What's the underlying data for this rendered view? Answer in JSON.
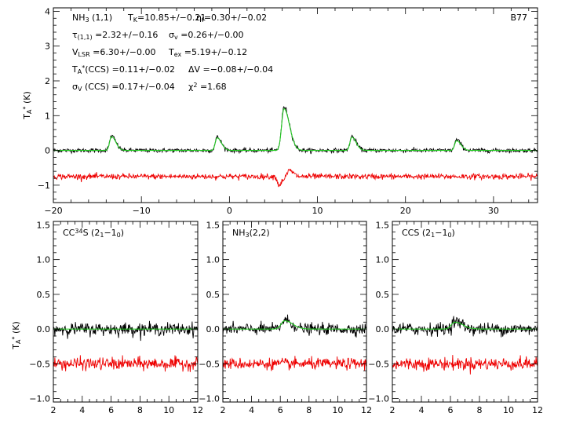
{
  "chart_data": [
    {
      "type": "line",
      "panel": "top",
      "ylabel": "T",
      "ylabel_sub": "A",
      "ylabel_sup": "*",
      "ylabel_unit": "(K)",
      "xlim": [
        -20,
        35
      ],
      "ylim": [
        -1.5,
        4.1
      ],
      "xticks": [
        -20,
        -10,
        0,
        10,
        20,
        30
      ],
      "yticks": [
        -1,
        0,
        1,
        2,
        3,
        4
      ],
      "source_label": "B77",
      "annotations": [
        [
          {
            "t": "NH"
          },
          {
            "t": "3",
            "sub": true
          },
          {
            "t": " (1,1)"
          }
        ],
        [
          {
            "t": "T"
          },
          {
            "t": "K",
            "sub": true
          },
          {
            "t": "=10.85+/−0.21"
          }
        ],
        [
          {
            "t": "η"
          },
          {
            "t": "f",
            "sub": true
          },
          {
            "t": "=0.30+/−0.02"
          }
        ],
        [
          {
            "t": "τ"
          },
          {
            "t": "(1,1)",
            "sub": true
          },
          {
            "t": " =2.32+/−0.16"
          }
        ],
        [
          {
            "t": "σ"
          },
          {
            "t": "v",
            "sub": true
          },
          {
            "t": " =0.26+/−0.00"
          }
        ],
        [
          {
            "t": "V"
          },
          {
            "t": "LSR",
            "sub": true
          },
          {
            "t": " =6.30+/−0.00"
          }
        ],
        [
          {
            "t": "T"
          },
          {
            "t": "ex",
            "sub": true
          },
          {
            "t": " =5.19+/−0.12"
          }
        ],
        [
          {
            "t": "T"
          },
          {
            "t": "A",
            "sub": true
          },
          {
            "t": "*",
            "sup": true
          },
          {
            "t": "(CCS) =0.11+/−0.02"
          }
        ],
        [
          {
            "t": "ΔV =−0.08+/−0.04"
          }
        ],
        [
          {
            "t": "σ"
          },
          {
            "t": "V",
            "sub": true
          },
          {
            "t": " (CCS) =0.17+/−0.04"
          }
        ],
        [
          {
            "t": "χ"
          },
          {
            "t": "2",
            "sup": true
          },
          {
            "t": " =1.68"
          }
        ]
      ],
      "series": [
        {
          "role": "data",
          "color": "#000000",
          "baseline": 0.0,
          "noise": 0.03,
          "components": [
            [
              -13.4,
              0.42,
              0.35
            ],
            [
              -1.4,
              0.38,
              0.35
            ],
            [
              6.2,
              1.25,
              0.45
            ],
            [
              13.9,
              0.4,
              0.35
            ],
            [
              25.8,
              0.3,
              0.35
            ]
          ]
        },
        {
          "role": "model",
          "color": "#22cc22",
          "baseline": 0.0,
          "noise": 0.0,
          "components": [
            [
              -13.4,
              0.4,
              0.35
            ],
            [
              -1.4,
              0.36,
              0.35
            ],
            [
              6.2,
              1.2,
              0.45
            ],
            [
              13.9,
              0.38,
              0.35
            ],
            [
              25.8,
              0.28,
              0.35
            ]
          ]
        },
        {
          "role": "residual",
          "color": "#ee0000",
          "baseline": -0.75,
          "noise": 0.04,
          "components": [
            [
              5.6,
              -0.25,
              0.25
            ],
            [
              6.8,
              0.18,
              0.3
            ]
          ]
        }
      ]
    },
    {
      "type": "line",
      "panel": "bottom-left",
      "label": [
        {
          "t": "CC"
        },
        {
          "t": "34",
          "sup": true
        },
        {
          "t": "S (2"
        },
        {
          "t": "1",
          "sub": true
        },
        {
          "t": "−1"
        },
        {
          "t": "0",
          "sub": true
        },
        {
          "t": ")"
        }
      ],
      "ylabel": "T",
      "ylabel_sub": "A",
      "ylabel_sup": "*",
      "ylabel_unit": "(K)",
      "xlim": [
        2,
        12
      ],
      "ylim": [
        -1.05,
        1.55
      ],
      "xticks": [
        2,
        4,
        6,
        8,
        10,
        12
      ],
      "yticks": [
        -1.0,
        -0.5,
        0.0,
        0.5,
        1.0,
        1.5
      ],
      "ytick_labels": [
        "−1.0",
        "−0.5",
        "0.0",
        "0.5",
        "1.0",
        "1.5"
      ],
      "series": [
        {
          "role": "data",
          "color": "#000000",
          "baseline": 0.0,
          "noise": 0.045,
          "components": []
        },
        {
          "role": "model",
          "color": "#22cc22",
          "baseline": 0.0,
          "noise": 0.0,
          "components": []
        },
        {
          "role": "residual",
          "color": "#ee0000",
          "baseline": -0.5,
          "noise": 0.045,
          "components": []
        }
      ]
    },
    {
      "type": "line",
      "panel": "bottom-middle",
      "label": [
        {
          "t": "NH"
        },
        {
          "t": "3",
          "sub": true
        },
        {
          "t": "(2,2)"
        }
      ],
      "xlim": [
        2,
        12
      ],
      "ylim": [
        -1.05,
        1.55
      ],
      "xticks": [
        2,
        4,
        6,
        8,
        10,
        12
      ],
      "yticks": [
        -1.0,
        -0.5,
        0.0,
        0.5,
        1.0,
        1.5
      ],
      "ytick_labels": [
        "−1.0",
        "−0.5",
        "0.0",
        "0.5",
        "1.0",
        "1.5"
      ],
      "series": [
        {
          "role": "data",
          "color": "#000000",
          "baseline": 0.0,
          "noise": 0.04,
          "components": [
            [
              6.3,
              0.13,
              0.35
            ]
          ]
        },
        {
          "role": "model",
          "color": "#22cc22",
          "baseline": 0.0,
          "noise": 0.0,
          "components": [
            [
              6.3,
              0.12,
              0.4
            ]
          ]
        },
        {
          "role": "residual",
          "color": "#ee0000",
          "baseline": -0.5,
          "noise": 0.04,
          "components": []
        }
      ]
    },
    {
      "type": "line",
      "panel": "bottom-right",
      "label": [
        {
          "t": "CCS (2"
        },
        {
          "t": "1",
          "sub": true
        },
        {
          "t": "−1"
        },
        {
          "t": "0",
          "sub": true
        },
        {
          "t": ")"
        }
      ],
      "xlim": [
        2,
        12
      ],
      "ylim": [
        -1.05,
        1.55
      ],
      "xticks": [
        2,
        4,
        6,
        8,
        10,
        12
      ],
      "yticks": [
        -1.0,
        -0.5,
        0.0,
        0.5,
        1.0,
        1.5
      ],
      "ytick_labels": [
        "−1.0",
        "−0.5",
        "0.0",
        "0.5",
        "1.0",
        "1.5"
      ],
      "series": [
        {
          "role": "data",
          "color": "#000000",
          "baseline": 0.0,
          "noise": 0.045,
          "components": [
            [
              6.3,
              0.11,
              0.35
            ]
          ]
        },
        {
          "role": "model",
          "color": "#22cc22",
          "baseline": 0.0,
          "noise": 0.0,
          "components": [
            [
              6.3,
              0.1,
              0.4
            ]
          ]
        },
        {
          "role": "residual",
          "color": "#ee0000",
          "baseline": -0.5,
          "noise": 0.045,
          "components": []
        }
      ]
    }
  ]
}
